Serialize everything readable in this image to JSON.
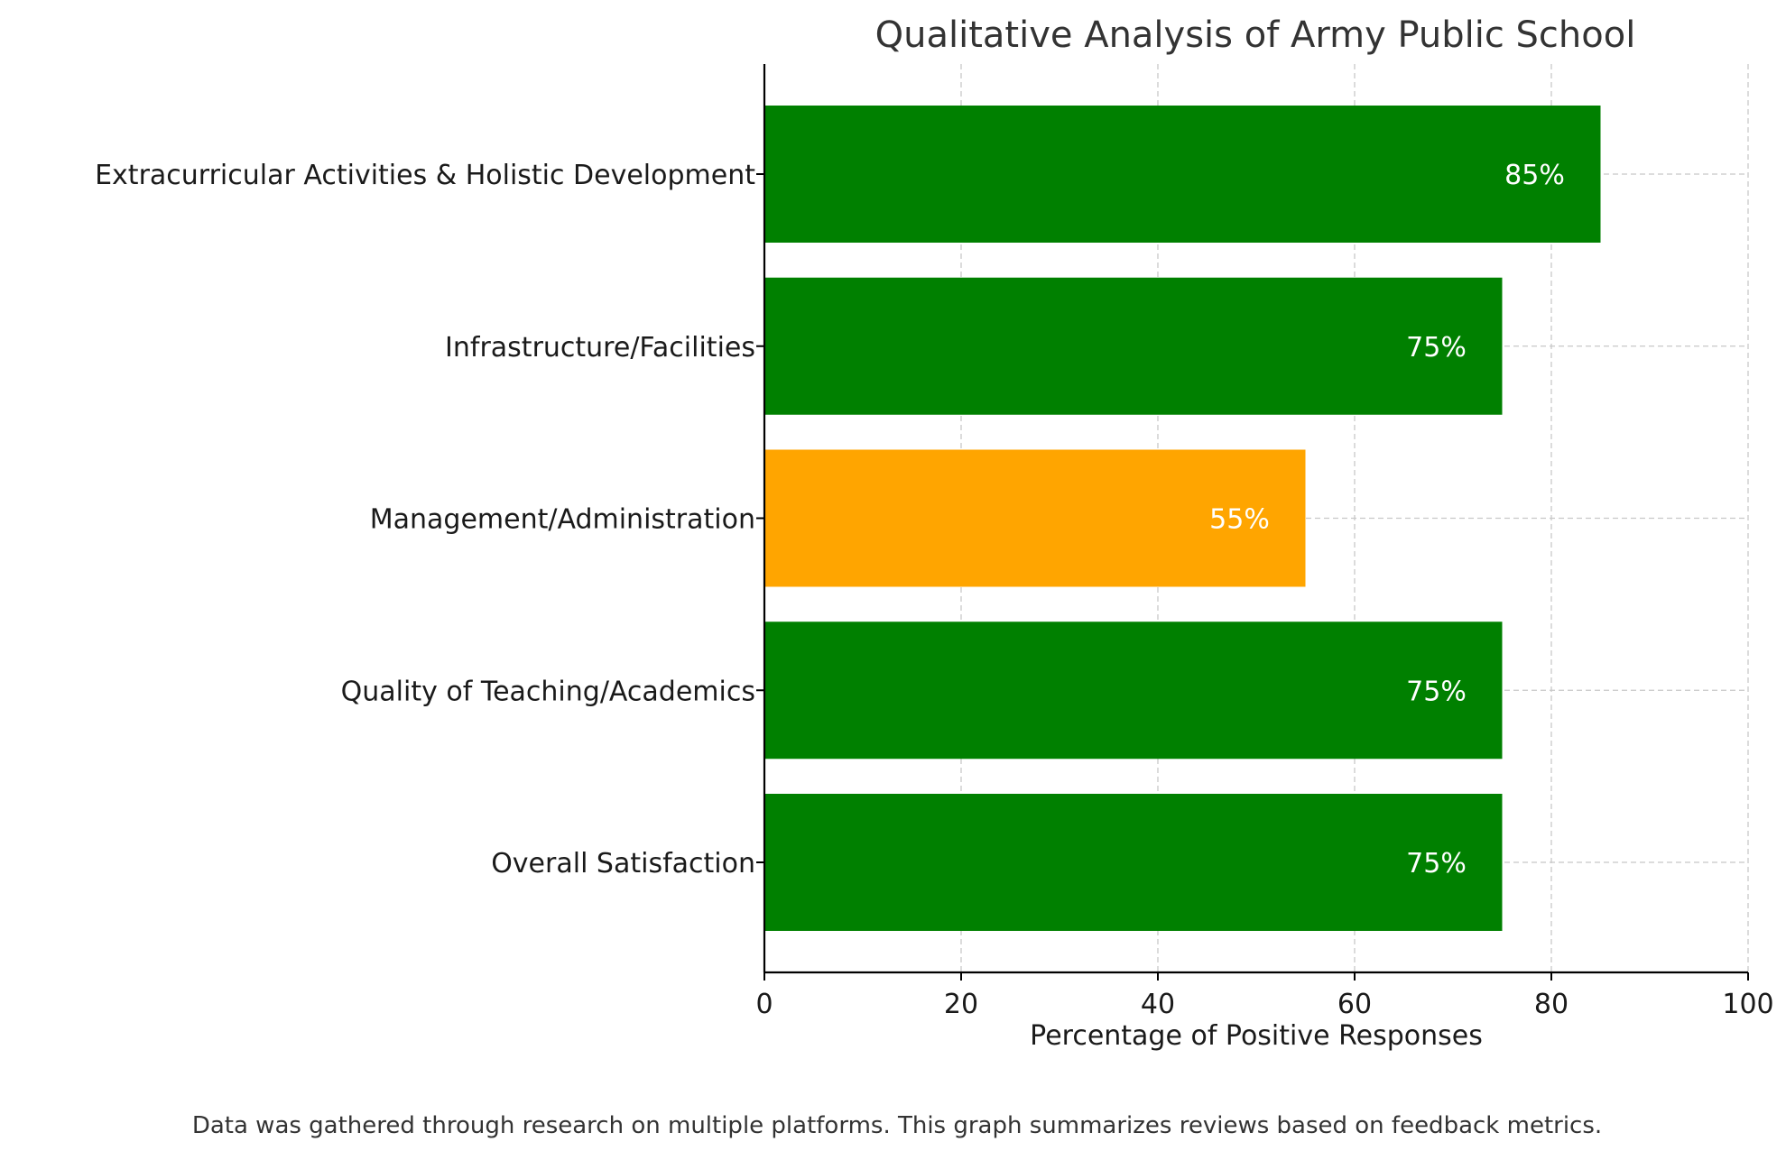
{
  "chart_data": {
    "type": "bar",
    "orientation": "horizontal",
    "title": "Qualitative Analysis of Army Public School",
    "xlabel": "Percentage of Positive Responses",
    "ylabel": "",
    "xlim": [
      0,
      100
    ],
    "xticks": [
      "0",
      "20",
      "40",
      "60",
      "80",
      "100"
    ],
    "grid": true,
    "categories": [
      "Overall Satisfaction",
      "Quality of Teaching/Academics",
      "Management/Administration",
      "Infrastructure/Facilities",
      "Extracurricular Activities & Holistic Development"
    ],
    "values": [
      75,
      75,
      55,
      75,
      85
    ],
    "data_labels": [
      "75%",
      "75%",
      "55%",
      "75%",
      "85%"
    ],
    "colors": [
      "#008000",
      "#008000",
      "#ffa500",
      "#008000",
      "#008000"
    ],
    "caption": "Data was gathered through research on multiple platforms. This graph summarizes reviews based on feedback metrics."
  }
}
